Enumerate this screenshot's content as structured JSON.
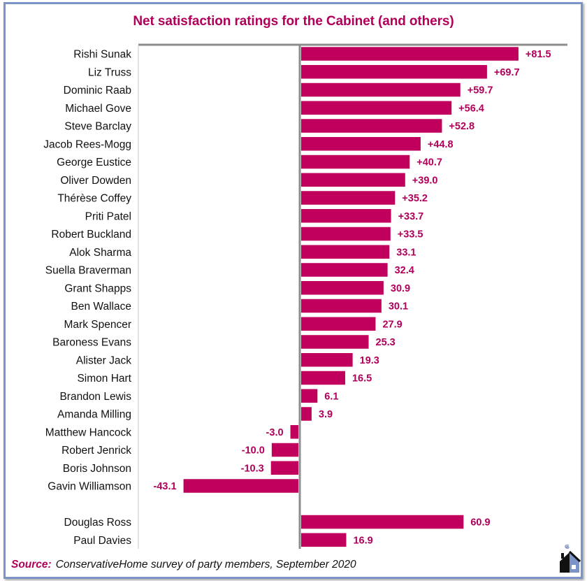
{
  "source": {
    "label": "Source:",
    "text": "ConservativeHome survey of party members, September 2020"
  },
  "logo": {
    "icon": "conservativehome-house-icon"
  },
  "colors": {
    "bar": "#c0005c",
    "title": "#b0005a",
    "value_label": "#b0005a",
    "frame_border": "#7b93c6",
    "zero_axis": "#8c8c8c"
  },
  "chart_data": {
    "type": "bar",
    "orientation": "horizontal",
    "title": "Net satisfaction ratings for the Cabinet (and others)",
    "xlabel": "",
    "ylabel": "",
    "grid": false,
    "legend": "none",
    "xlim": [
      -60,
      100
    ],
    "categories": [
      "Rishi Sunak",
      "Liz Truss",
      "Dominic Raab",
      "Michael Gove",
      "Steve Barclay",
      "Jacob Rees-Mogg",
      "George Eustice",
      "Oliver Dowden",
      "Thérèse Coffey",
      "Priti Patel",
      "Robert Buckland",
      "Alok Sharma",
      "Suella Braverman",
      "Grant Shapps",
      "Ben Wallace",
      "Mark Spencer",
      "Baroness Evans",
      "Alister Jack",
      "Simon Hart",
      "Brandon Lewis",
      "Amanda Milling",
      "Matthew Hancock",
      "Robert Jenrick",
      "Boris Johnson",
      "Gavin Williamson",
      "",
      "Douglas Ross",
      "Paul Davies"
    ],
    "values": [
      81.5,
      69.7,
      59.7,
      56.4,
      52.8,
      44.8,
      40.7,
      39.0,
      35.2,
      33.7,
      33.5,
      33.1,
      32.4,
      30.9,
      30.1,
      27.9,
      25.3,
      19.3,
      16.5,
      6.1,
      3.9,
      -3.0,
      -10.0,
      -10.3,
      -43.1,
      null,
      60.9,
      16.9
    ],
    "data_labels": [
      "+81.5",
      "+69.7",
      "+59.7",
      "+56.4",
      "+52.8",
      "+44.8",
      "+40.7",
      "+39.0",
      "+35.2",
      "+33.7",
      "+33.5",
      "33.1",
      "32.4",
      "30.9",
      "30.1",
      "27.9",
      "25.3",
      "19.3",
      "16.5",
      "6.1",
      "3.9",
      "-3.0",
      "-10.0",
      "-10.3",
      "-43.1",
      "",
      "60.9",
      "16.9"
    ]
  }
}
